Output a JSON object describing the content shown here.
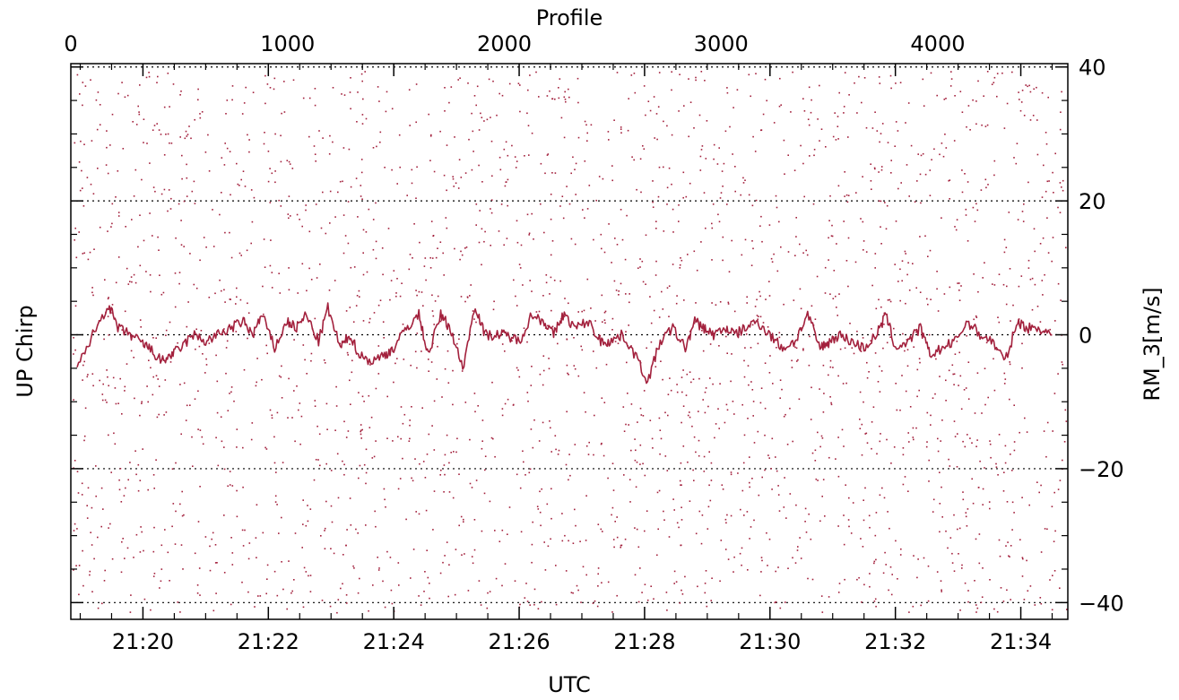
{
  "chart_data": {
    "type": "line",
    "title": "",
    "x_bottom_label": "UTC",
    "x_top_label": "Profile",
    "y_left_label": "UP Chirp",
    "y_right_label": "RM_3[m/s]",
    "x_bottom_ticks": [
      "21:20",
      "21:22",
      "21:24",
      "21:26",
      "21:28",
      "21:30",
      "21:32",
      "21:34"
    ],
    "x_bottom_tick_minutes": [
      20,
      22,
      24,
      26,
      28,
      30,
      32,
      34
    ],
    "x_bottom_range_minutes": [
      18.85,
      34.75
    ],
    "x_top_ticks": [
      "0",
      "1000",
      "2000",
      "3000",
      "4000"
    ],
    "x_top_tick_values": [
      0,
      1000,
      2000,
      3000,
      4000
    ],
    "x_top_range": [
      0,
      4600
    ],
    "y_right_ticks": [
      "40",
      "20",
      "0",
      "−20",
      "−40"
    ],
    "y_right_tick_values": [
      40,
      20,
      0,
      -20,
      -40
    ],
    "ylim": [
      -42.5,
      40.5
    ],
    "grid_y_values": [
      40,
      20,
      0,
      -20,
      -40
    ],
    "grid": true,
    "series": [
      {
        "color": "#a3213d",
        "x_minutes": [
          18.95,
          19.2,
          19.45,
          19.6,
          19.8,
          19.95,
          20.1,
          20.3,
          20.45,
          20.6,
          20.8,
          21.0,
          21.2,
          21.4,
          21.6,
          21.75,
          21.9,
          22.1,
          22.3,
          22.45,
          22.6,
          22.8,
          22.95,
          23.15,
          23.3,
          23.45,
          23.65,
          23.85,
          24.0,
          24.2,
          24.4,
          24.55,
          24.75,
          24.9,
          25.1,
          25.3,
          25.45,
          25.65,
          25.8,
          26.0,
          26.2,
          26.4,
          26.55,
          26.7,
          26.9,
          27.1,
          27.3,
          27.45,
          27.65,
          27.85,
          28.05,
          28.25,
          28.45,
          28.65,
          28.8,
          28.95,
          29.1,
          29.3,
          29.45,
          29.6,
          29.8,
          30.0,
          30.2,
          30.4,
          30.6,
          30.8,
          30.95,
          31.1,
          31.3,
          31.5,
          31.7,
          31.85,
          32.0,
          32.2,
          32.4,
          32.55,
          32.75,
          32.95,
          33.15,
          33.35,
          33.55,
          33.75,
          33.95,
          34.1,
          34.3,
          34.5
        ],
        "y": [
          -5,
          0,
          4.5,
          1,
          0,
          -1,
          -2,
          -4,
          -3,
          -2,
          0,
          -1,
          0,
          1,
          2,
          0,
          3,
          -2,
          2,
          1,
          3,
          -1,
          4,
          -2,
          0,
          -3,
          -4,
          -3,
          -2,
          1,
          3,
          -3,
          3,
          1,
          -5,
          4.5,
          0,
          0,
          0,
          -1,
          3,
          2,
          0,
          3,
          1,
          2,
          -1,
          -1,
          0,
          -3,
          -7,
          -1,
          1,
          -2,
          2,
          1,
          0,
          1,
          0,
          1,
          2,
          0,
          -2,
          -1,
          3,
          -2,
          -1,
          0,
          -1,
          -2,
          0,
          3,
          -2,
          -1,
          1,
          -3,
          -2,
          -1,
          2,
          0,
          -1,
          -4,
          2,
          1,
          1,
          0
        ]
      }
    ]
  },
  "colors": {
    "line": "#a3213d",
    "dots": "#a3213d",
    "axes": "#000000"
  }
}
